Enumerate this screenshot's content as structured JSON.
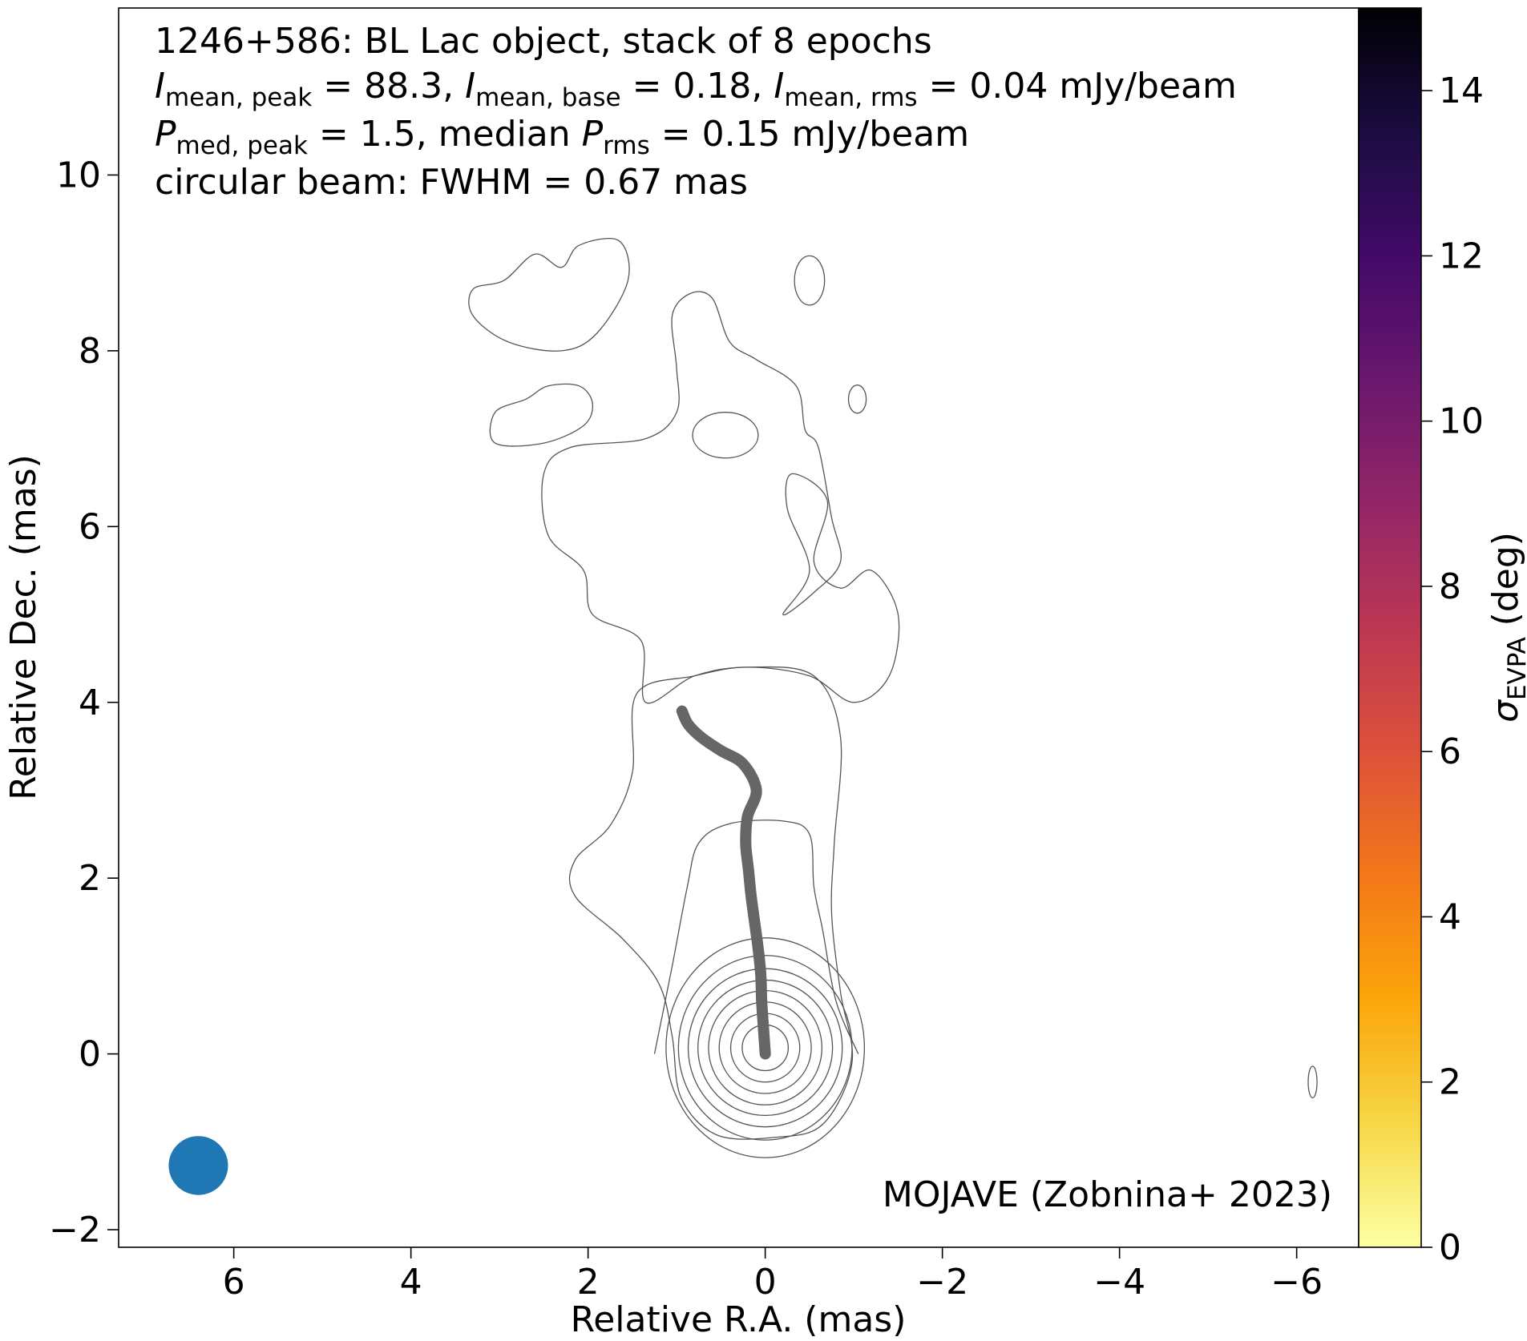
{
  "chart_data": {
    "type": "contour",
    "title_lines": [
      "1246+586: BL Lac object, stack of 8 epochs",
      "I_mean,peak = 88.3, I_mean,base = 0.18, I_mean,rms = 0.04 mJy/beam",
      "P_med,peak = 1.5, median P_rms = 0.15 mJy/beam",
      "circular beam: FWHM = 0.67 mas"
    ],
    "info": {
      "source": "1246+586: BL Lac object, stack of 8 epochs",
      "i_sym": "I",
      "i_peak_sub": "mean, peak",
      "i_peak_val": " = 88.3, ",
      "i_base_sub": "mean, base",
      "i_base_val": " = 0.18, ",
      "i_rms_sub": "mean, rms",
      "i_rms_val": " = 0.04 mJy/beam",
      "p_sym": "P",
      "p_peak_sub": "med, peak",
      "p_peak_val": " = 1.5, median ",
      "p_rms_sub": "rms",
      "p_rms_val": " = 0.15 mJy/beam",
      "beam": "circular beam: FWHM = 0.67 mas"
    },
    "credit": "MOJAVE (Zobnina+ 2023)",
    "xlabel": "Relative R.A. (mas)",
    "ylabel": "Relative Dec. (mas)",
    "xlim": [
      7.3,
      -6.7
    ],
    "ylim": [
      -2.2,
      11.9
    ],
    "x_reversed": true,
    "xticks": [
      6,
      4,
      2,
      0,
      -2,
      -4,
      -6
    ],
    "yticks": [
      -2,
      0,
      2,
      4,
      6,
      8,
      10
    ],
    "xtick_labels": [
      "6",
      "4",
      "2",
      "0",
      "−2",
      "−4",
      "−6"
    ],
    "ytick_labels": [
      "−2",
      "0",
      "2",
      "4",
      "6",
      "8",
      "10"
    ],
    "colorbar": {
      "label_symbol": "σ",
      "label_sub": "EVPA",
      "label_unit": " (deg)",
      "range": [
        0,
        15
      ],
      "ticks": [
        0,
        2,
        4,
        6,
        8,
        10,
        12,
        14
      ],
      "tick_labels": [
        "0",
        "2",
        "4",
        "6",
        "8",
        "10",
        "12",
        "14"
      ],
      "colormap": "inferno_r",
      "stops": [
        "#fcffa4",
        "#f6d746",
        "#fca50a",
        "#f37819",
        "#dd513a",
        "#bc3754",
        "#932667",
        "#6a176e",
        "#420a68",
        "#1b0c41",
        "#000004"
      ]
    },
    "beam": {
      "ra": 6.4,
      "dec": -1.27,
      "fwhm_mas": 0.67,
      "color": "#1f77b4"
    },
    "ridge_line": {
      "color": "#666666",
      "points": [
        [
          0.0,
          0.0
        ],
        [
          0.02,
          0.3
        ],
        [
          0.04,
          0.6
        ],
        [
          0.05,
          0.9
        ],
        [
          0.08,
          1.2
        ],
        [
          0.12,
          1.5
        ],
        [
          0.16,
          1.8
        ],
        [
          0.19,
          2.1
        ],
        [
          0.22,
          2.4
        ],
        [
          0.2,
          2.7
        ],
        [
          0.1,
          3.0
        ],
        [
          0.25,
          3.3
        ],
        [
          0.5,
          3.45
        ],
        [
          0.72,
          3.6
        ],
        [
          0.87,
          3.75
        ],
        [
          0.94,
          3.9
        ]
      ]
    },
    "contours": {
      "color": "#555555",
      "core_levels": [
        {
          "cx": 0.0,
          "cy": 0.07,
          "rx": 1.12,
          "ry": 1.25
        },
        {
          "cx": 0.0,
          "cy": 0.07,
          "rx": 0.98,
          "ry": 1.05
        },
        {
          "cx": 0.0,
          "cy": 0.07,
          "rx": 0.87,
          "ry": 0.9
        },
        {
          "cx": 0.0,
          "cy": 0.07,
          "rx": 0.76,
          "ry": 0.77
        },
        {
          "cx": 0.0,
          "cy": 0.07,
          "rx": 0.64,
          "ry": 0.65
        },
        {
          "cx": 0.0,
          "cy": 0.07,
          "rx": 0.52,
          "ry": 0.52
        },
        {
          "cx": 0.0,
          "cy": 0.07,
          "rx": 0.39,
          "ry": 0.39
        },
        {
          "cx": 0.0,
          "cy": 0.07,
          "rx": 0.26,
          "ry": 0.26
        }
      ],
      "inner_envelope": [
        [
          1.25,
          0.0
        ],
        [
          1.05,
          1.0
        ],
        [
          0.88,
          1.9
        ],
        [
          0.75,
          2.4
        ],
        [
          0.4,
          2.62
        ],
        [
          -0.2,
          2.65
        ],
        [
          -0.5,
          2.5
        ],
        [
          -0.55,
          1.9
        ],
        [
          -0.65,
          1.4
        ],
        [
          -0.8,
          0.6
        ],
        [
          -1.05,
          0.0
        ]
      ],
      "outer_envelope": [
        [
          -0.98,
          -0.1
        ],
        [
          -0.85,
          0.7
        ],
        [
          -0.75,
          1.6
        ],
        [
          -0.78,
          2.4
        ],
        [
          -0.85,
          3.6
        ],
        [
          -0.55,
          4.3
        ],
        [
          0.2,
          4.4
        ],
        [
          0.8,
          4.3
        ],
        [
          1.45,
          4.1
        ],
        [
          1.5,
          3.2
        ],
        [
          1.75,
          2.6
        ],
        [
          2.15,
          2.2
        ],
        [
          2.15,
          1.8
        ],
        [
          1.6,
          1.3
        ],
        [
          1.2,
          0.8
        ],
        [
          1.05,
          0.2
        ],
        [
          0.95,
          -0.5
        ],
        [
          0.55,
          -0.92
        ],
        [
          -0.1,
          -0.95
        ],
        [
          -0.65,
          -0.8
        ],
        [
          -0.98,
          -0.1
        ]
      ],
      "outer_jet": [
        [
          -0.2,
          5.0
        ],
        [
          -0.5,
          5.5
        ],
        [
          -0.25,
          6.2
        ],
        [
          -0.3,
          6.6
        ],
        [
          -0.7,
          6.3
        ],
        [
          -0.55,
          5.6
        ],
        [
          -0.85,
          5.3
        ],
        [
          -1.2,
          5.5
        ],
        [
          -1.5,
          5.0
        ],
        [
          -1.4,
          4.3
        ],
        [
          -1.0,
          4.0
        ],
        [
          -0.5,
          4.3
        ],
        [
          0.2,
          4.4
        ],
        [
          0.8,
          4.3
        ],
        [
          1.35,
          4.0
        ],
        [
          1.4,
          4.7
        ],
        [
          1.95,
          5.0
        ],
        [
          2.05,
          5.5
        ],
        [
          2.45,
          5.9
        ],
        [
          2.5,
          6.6
        ],
        [
          2.2,
          6.9
        ],
        [
          1.35,
          7.0
        ],
        [
          1.0,
          7.3
        ],
        [
          1.0,
          7.8
        ],
        [
          1.05,
          8.4
        ],
        [
          0.85,
          8.65
        ],
        [
          0.6,
          8.6
        ],
        [
          0.4,
          8.1
        ],
        [
          0.1,
          7.9
        ],
        [
          -0.35,
          7.6
        ],
        [
          -0.45,
          7.1
        ],
        [
          -0.6,
          6.9
        ],
        [
          -0.75,
          6.1
        ],
        [
          -0.85,
          5.6
        ],
        [
          -0.55,
          5.25
        ],
        [
          -0.2,
          5.0
        ]
      ],
      "islands": [
        {
          "cx": 0.45,
          "cy": 7.04,
          "rx": 0.37,
          "ry": 0.26
        },
        {
          "cx": -0.5,
          "cy": 8.8,
          "rx": 0.17,
          "ry": 0.28
        },
        {
          "cx": -1.04,
          "cy": 7.45,
          "rx": 0.1,
          "ry": 0.16
        },
        {
          "cx": -6.18,
          "cy": -0.32,
          "rx": 0.05,
          "ry": 0.18
        }
      ],
      "northwest_blob": [
        [
          2.95,
          8.8
        ],
        [
          2.6,
          9.1
        ],
        [
          2.3,
          8.95
        ],
        [
          2.1,
          9.2
        ],
        [
          1.65,
          9.25
        ],
        [
          1.55,
          8.8
        ],
        [
          1.9,
          8.2
        ],
        [
          2.3,
          8.0
        ],
        [
          2.9,
          8.1
        ],
        [
          3.3,
          8.4
        ],
        [
          3.3,
          8.7
        ],
        [
          2.95,
          8.8
        ]
      ],
      "west_blob": [
        [
          2.45,
          7.6
        ],
        [
          2.1,
          7.6
        ],
        [
          1.95,
          7.4
        ],
        [
          2.05,
          7.15
        ],
        [
          2.5,
          6.95
        ],
        [
          3.05,
          6.95
        ],
        [
          3.05,
          7.3
        ],
        [
          2.7,
          7.45
        ],
        [
          2.45,
          7.6
        ]
      ]
    }
  }
}
